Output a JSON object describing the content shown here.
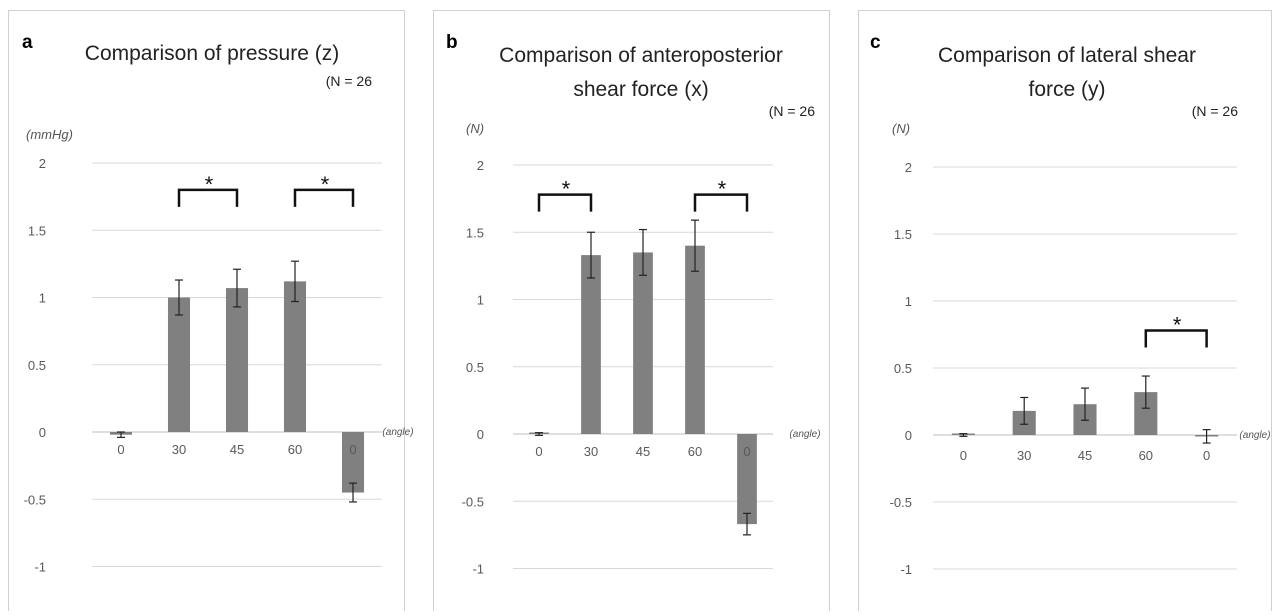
{
  "chart_data": [
    {
      "type": "bar",
      "panel_label": "a",
      "title": [
        "Comparison of pressure (z)"
      ],
      "n_label": "(N = 26",
      "ylabel": "(mmHg)",
      "xlabel": "(angle)",
      "categories": [
        "0",
        "30",
        "45",
        "60",
        "0"
      ],
      "values": [
        -0.02,
        1.0,
        1.07,
        1.12,
        -0.45
      ],
      "errors": [
        0.02,
        0.13,
        0.14,
        0.15,
        0.07
      ],
      "ylim": [
        -1,
        2
      ],
      "yticks": [
        "2",
        "1.5",
        "1",
        "0.5",
        "0",
        "-0.5",
        "-1"
      ],
      "significance": [
        {
          "from": 1,
          "to": 2,
          "label": "*",
          "level": 1.8
        },
        {
          "from": 3,
          "to": 4,
          "label": "*",
          "level": 1.8
        }
      ],
      "grid": true,
      "bar_color": "#808080"
    },
    {
      "type": "bar",
      "panel_label": "b",
      "title": [
        "Comparison of anteroposterior",
        "shear force (x)"
      ],
      "n_label": "(N = 26",
      "ylabel": "(N)",
      "xlabel": "(angle)",
      "categories": [
        "0",
        "30",
        "45",
        "60",
        "0"
      ],
      "values": [
        0.0,
        1.33,
        1.35,
        1.4,
        -0.67
      ],
      "errors": [
        0.01,
        0.17,
        0.17,
        0.19,
        0.08
      ],
      "ylim": [
        -1,
        2
      ],
      "yticks": [
        "2",
        "1.5",
        "1",
        "0.5",
        "0",
        "-0.5",
        "-1"
      ],
      "significance": [
        {
          "from": 0,
          "to": 1,
          "label": "*",
          "level": 1.78
        },
        {
          "from": 3,
          "to": 4,
          "label": "*",
          "level": 1.78
        }
      ],
      "grid": true,
      "bar_color": "#808080"
    },
    {
      "type": "bar",
      "panel_label": "c",
      "title": [
        "Comparison of lateral shear",
        "force (y)"
      ],
      "n_label": "(N = 26",
      "ylabel": "(N)",
      "xlabel": "(angle)",
      "categories": [
        "0",
        "30",
        "45",
        "60",
        "0"
      ],
      "values": [
        0.0,
        0.18,
        0.23,
        0.32,
        -0.01
      ],
      "errors": [
        0.01,
        0.1,
        0.12,
        0.12,
        0.05
      ],
      "ylim": [
        -1,
        2
      ],
      "yticks": [
        "2",
        "1.5",
        "1",
        "0.5",
        "0",
        "-0.5",
        "-1"
      ],
      "significance": [
        {
          "from": 3,
          "to": 4,
          "label": "*",
          "level": 0.78
        }
      ],
      "grid": true,
      "bar_color": "#808080"
    }
  ]
}
